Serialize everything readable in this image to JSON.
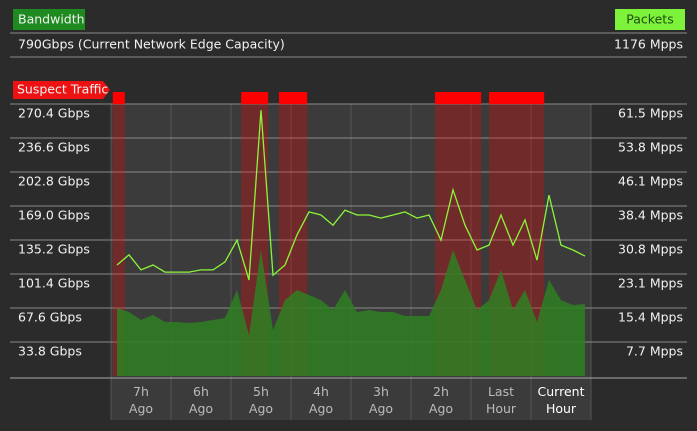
{
  "header": {
    "capacity": "790Gbps (Current Network Edge Capacity)",
    "packets_capacity": "1176 Mpps"
  },
  "chart_data": {
    "type": "area_line",
    "x": [
      7.4,
      7.2,
      7.0,
      6.8,
      6.6,
      6.4,
      6.2,
      6.0,
      5.8,
      5.6,
      5.4,
      5.2,
      5.0,
      4.8,
      4.6,
      4.4,
      4.2,
      4.0,
      3.8,
      3.6,
      3.4,
      3.2,
      3.0,
      2.8,
      2.6,
      2.4,
      2.2,
      2.0,
      1.8,
      1.6,
      1.4,
      1.2,
      1.0,
      0.8,
      0.6,
      0.4,
      0.2,
      0.0,
      -0.2,
      -0.4
    ],
    "xlim": [
      7.5,
      -0.5
    ],
    "xticks": [
      {
        "value": 7,
        "label": "7h Ago"
      },
      {
        "value": 6,
        "label": "6h Ago"
      },
      {
        "value": 5,
        "label": "5h Ago"
      },
      {
        "value": 4,
        "label": "4h Ago"
      },
      {
        "value": 3,
        "label": "3h Ago"
      },
      {
        "value": 2,
        "label": "2h Ago"
      },
      {
        "value": 1,
        "label": "Last Hour"
      },
      {
        "value": 0,
        "label": "Current Hour"
      }
    ],
    "series": [
      {
        "name": "Bandwidth",
        "color": "#2f7f22",
        "values": [
          67.6,
          63.6,
          55.7,
          60.6,
          53.7,
          53.7,
          52.7,
          53.7,
          55.7,
          57.7,
          85.5,
          40.8,
          125.3,
          45.7,
          75.5,
          85.5,
          80.5,
          75.5,
          65.6,
          85.5,
          63.6,
          65.6,
          63.6,
          63.6,
          59.6,
          59.6,
          59.6,
          85.5,
          125.3,
          95.4,
          65.6,
          75.5,
          105.4,
          65.6,
          85.5,
          53.7,
          95.4,
          75.5,
          70.6,
          71.6
        ]
      },
      {
        "name": "Packets",
        "color": "#8cf53a",
        "axis": "y2",
        "values": [
          25.1,
          27.4,
          24.0,
          25.1,
          23.5,
          23.5,
          23.5,
          24.0,
          24.0,
          25.8,
          30.7,
          21.7,
          60.1,
          22.8,
          25.1,
          31.9,
          37.1,
          36.4,
          34.1,
          37.5,
          36.4,
          36.4,
          35.7,
          36.4,
          37.1,
          35.7,
          36.4,
          30.7,
          42.1,
          34.1,
          28.5,
          29.6,
          36.4,
          29.6,
          35.3,
          26.2,
          40.9,
          29.6,
          28.5,
          27.1
        ]
      }
    ],
    "ylim": [
      0,
      270.4
    ],
    "yticks": [
      {
        "value": 270.4,
        "label": "270.4 Gbps"
      },
      {
        "value": 236.6,
        "label": "236.6 Gbps"
      },
      {
        "value": 202.8,
        "label": "202.8 Gbps"
      },
      {
        "value": 169.0,
        "label": "169.0 Gbps"
      },
      {
        "value": 135.2,
        "label": "135.2 Gbps"
      },
      {
        "value": 101.4,
        "label": "101.4 Gbps"
      },
      {
        "value": 67.6,
        "label": "67.6 Gbps"
      },
      {
        "value": 33.8,
        "label": "33.8 Gbps"
      }
    ],
    "y2lim": [
      0,
      61.5
    ],
    "y2ticks": [
      {
        "value": 61.5,
        "label": "61.5 Mpps"
      },
      {
        "value": 53.8,
        "label": "53.8 Mpps"
      },
      {
        "value": 46.1,
        "label": "46.1 Mpps"
      },
      {
        "value": 38.4,
        "label": "38.4 Mpps"
      },
      {
        "value": 30.8,
        "label": "30.8 Mpps"
      },
      {
        "value": 23.1,
        "label": "23.1 Mpps"
      },
      {
        "value": 15.4,
        "label": "15.4 Mpps"
      },
      {
        "value": 7.7,
        "label": "7.7 Mpps"
      }
    ],
    "suspect_traffic": {
      "label": "Suspect Traffic",
      "color": "#ff0000",
      "intervals": [
        [
          7.47,
          7.27
        ],
        [
          5.33,
          4.88
        ],
        [
          4.7,
          4.23
        ],
        [
          2.1,
          1.33
        ],
        [
          1.2,
          0.28
        ]
      ]
    },
    "grid": true
  }
}
